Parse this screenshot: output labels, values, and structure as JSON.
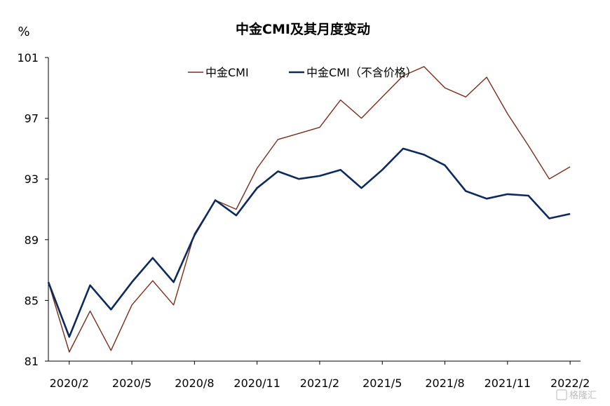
{
  "chart_data": {
    "type": "line",
    "title": "中金CMI及其月度变动",
    "ylabel": "%",
    "xlabel": "",
    "ylim": [
      81,
      101
    ],
    "yticks": [
      81,
      85,
      89,
      93,
      97,
      101
    ],
    "x_tick_labels": [
      "2020/2",
      "2020/5",
      "2020/8",
      "2020/11",
      "2021/2",
      "2021/5",
      "2021/8",
      "2021/11",
      "2022/2"
    ],
    "x": [
      "2020/1",
      "2020/2",
      "2020/3",
      "2020/4",
      "2020/5",
      "2020/6",
      "2020/7",
      "2020/8",
      "2020/9",
      "2020/10",
      "2020/11",
      "2020/12",
      "2021/1",
      "2021/2",
      "2021/3",
      "2021/4",
      "2021/5",
      "2021/6",
      "2021/7",
      "2021/8",
      "2021/9",
      "2021/10",
      "2021/11",
      "2021/12",
      "2022/1",
      "2022/2"
    ],
    "legend_position": "top",
    "series": [
      {
        "name": "中金CMI",
        "color": "#7b2d1a",
        "values": [
          86.2,
          81.6,
          84.3,
          81.7,
          84.7,
          86.3,
          84.7,
          89.4,
          91.6,
          91.0,
          93.7,
          95.6,
          96.0,
          96.4,
          98.2,
          97.0,
          98.4,
          99.8,
          100.4,
          99.0,
          98.4,
          99.7,
          97.3,
          95.2,
          93.0,
          93.8
        ]
      },
      {
        "name": "中金CMI（不含价格）",
        "color": "#0d2a5e",
        "values": [
          86.2,
          82.6,
          86.0,
          84.4,
          86.2,
          87.8,
          86.2,
          89.3,
          91.6,
          90.6,
          92.4,
          93.5,
          93.0,
          93.2,
          93.6,
          92.4,
          93.6,
          95.0,
          94.6,
          93.9,
          92.2,
          91.7,
          92.0,
          91.9,
          90.4,
          90.7
        ]
      }
    ]
  },
  "watermark": {
    "text": "格隆汇"
  }
}
